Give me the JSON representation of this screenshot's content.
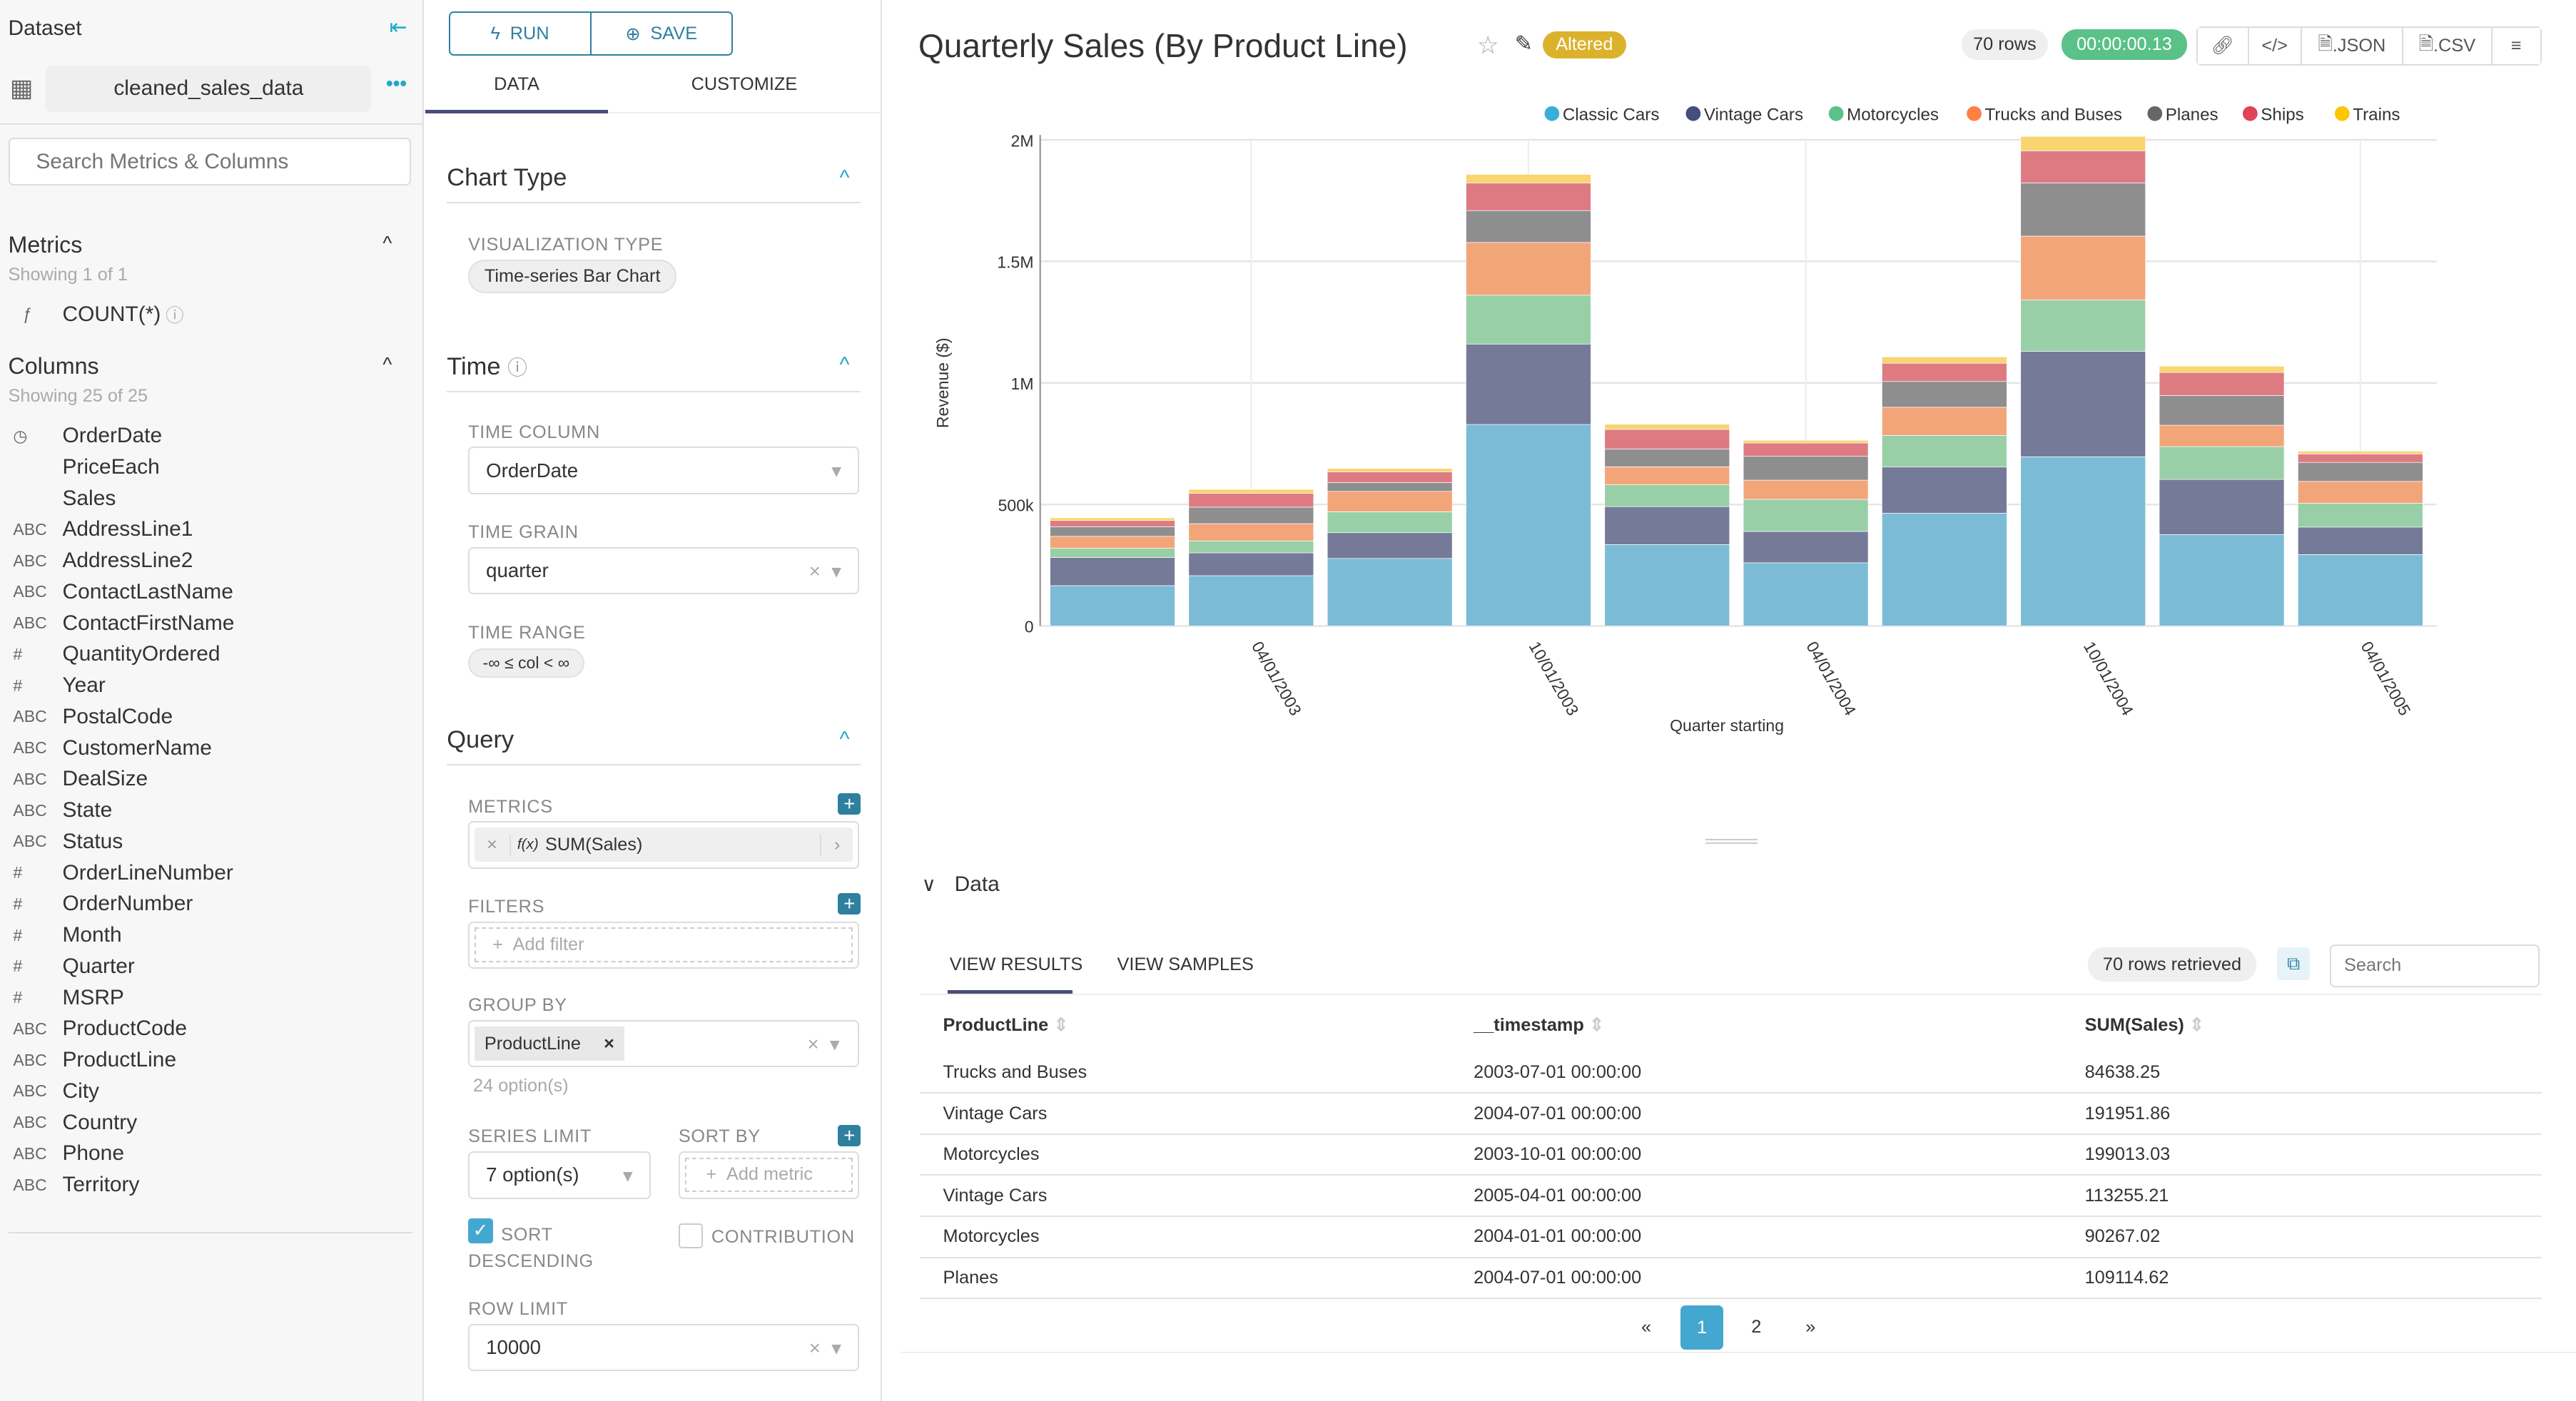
{
  "sidebar": {
    "title": "Dataset",
    "dataset_name": "cleaned_sales_data",
    "search_placeholder": "Search Metrics & Columns",
    "metrics_title": "Metrics",
    "metrics_count": "Showing 1 of 1",
    "metrics": [
      {
        "icon": "ƒ",
        "label": "COUNT(*)"
      }
    ],
    "columns_title": "Columns",
    "columns_count": "Showing 25 of 25",
    "columns": [
      {
        "type": "◷",
        "label": "OrderDate"
      },
      {
        "type": "",
        "label": "PriceEach"
      },
      {
        "type": "",
        "label": "Sales"
      },
      {
        "type": "ABC",
        "label": "AddressLine1"
      },
      {
        "type": "ABC",
        "label": "AddressLine2"
      },
      {
        "type": "ABC",
        "label": "ContactLastName"
      },
      {
        "type": "ABC",
        "label": "ContactFirstName"
      },
      {
        "type": "#",
        "label": "QuantityOrdered"
      },
      {
        "type": "#",
        "label": "Year"
      },
      {
        "type": "ABC",
        "label": "PostalCode"
      },
      {
        "type": "ABC",
        "label": "CustomerName"
      },
      {
        "type": "ABC",
        "label": "DealSize"
      },
      {
        "type": "ABC",
        "label": "State"
      },
      {
        "type": "ABC",
        "label": "Status"
      },
      {
        "type": "#",
        "label": "OrderLineNumber"
      },
      {
        "type": "#",
        "label": "OrderNumber"
      },
      {
        "type": "#",
        "label": "Month"
      },
      {
        "type": "#",
        "label": "Quarter"
      },
      {
        "type": "#",
        "label": "MSRP"
      },
      {
        "type": "ABC",
        "label": "ProductCode"
      },
      {
        "type": "ABC",
        "label": "ProductLine"
      },
      {
        "type": "ABC",
        "label": "City"
      },
      {
        "type": "ABC",
        "label": "Country"
      },
      {
        "type": "ABC",
        "label": "Phone"
      },
      {
        "type": "ABC",
        "label": "Territory"
      }
    ]
  },
  "controls": {
    "run": "RUN",
    "save": "SAVE",
    "tabs": [
      "DATA",
      "CUSTOMIZE"
    ],
    "chart_type": {
      "title": "Chart Type",
      "viz_label": "VISUALIZATION TYPE",
      "viz_value": "Time-series Bar Chart"
    },
    "time": {
      "title": "Time",
      "column_label": "TIME COLUMN",
      "column_value": "OrderDate",
      "grain_label": "TIME GRAIN",
      "grain_value": "quarter",
      "range_label": "TIME RANGE",
      "range_value": "-∞ ≤ col < ∞"
    },
    "query": {
      "title": "Query",
      "metrics_label": "METRICS",
      "metric_value": "SUM(Sales)",
      "metric_fx": "f(x)",
      "filters_label": "FILTERS",
      "add_filter": "Add filter",
      "groupby_label": "GROUP BY",
      "groupby_tag": "ProductLine",
      "groupby_hint": "24 option(s)",
      "series_limit_label": "SERIES LIMIT",
      "series_limit_value": "7 option(s)",
      "sort_by_label": "SORT BY",
      "add_metric": "Add metric",
      "sort_desc_label": "SORT DESCENDING",
      "sort_desc_checked": true,
      "contribution_label": "CONTRIBUTION",
      "contribution_checked": false,
      "row_limit_label": "ROW LIMIT",
      "row_limit_value": "10000"
    }
  },
  "header": {
    "title": "Quarterly Sales (By Product Line)",
    "altered": "Altered",
    "rows": "70 rows",
    "duration": "00:00:00.13",
    "json": ".JSON",
    "csv": ".CSV"
  },
  "chart_data": {
    "type": "bar",
    "stacked": true,
    "ylabel": "Revenue ($)",
    "xlabel": "Quarter starting",
    "ylim": [
      0,
      2000000
    ],
    "yticks": [
      "0",
      "500k",
      "1M",
      "1.5M",
      "2M"
    ],
    "ytick_values": [
      0,
      500000,
      1000000,
      1500000,
      2000000
    ],
    "xtick_labels": [
      "04/01/2003",
      "10/01/2003",
      "04/01/2004",
      "10/01/2004",
      "04/01/2005"
    ],
    "categories": [
      "2003-01-01",
      "2003-04-01",
      "2003-07-01",
      "2003-10-01",
      "2004-01-01",
      "2004-04-01",
      "2004-07-01",
      "2004-10-01",
      "2005-01-01",
      "2005-04-01"
    ],
    "legend_position": "top-right",
    "grid": true,
    "series": [
      {
        "name": "Classic Cars",
        "color": "#7bbbd6",
        "legend_color": "#3caddb",
        "values": [
          166000,
          207000,
          278000,
          829000,
          335000,
          260000,
          464000,
          696000,
          376000,
          294000
        ]
      },
      {
        "name": "Vintage Cars",
        "color": "#757a98",
        "legend_color": "#454e7c",
        "values": [
          116000,
          94000,
          106000,
          331000,
          156000,
          129000,
          190000,
          434000,
          227000,
          113000
        ]
      },
      {
        "name": "Motorcycles",
        "color": "#99cfa6",
        "legend_color": "#5ac189",
        "values": [
          38000,
          49000,
          86000,
          201000,
          90000,
          132000,
          130000,
          211000,
          135000,
          98000
        ]
      },
      {
        "name": "Trucks and Buses",
        "color": "#f3a57a",
        "legend_color": "#ff7f44",
        "values": [
          49000,
          71000,
          84000,
          217000,
          74000,
          79000,
          116000,
          263000,
          88000,
          90000
        ]
      },
      {
        "name": "Planes",
        "color": "#8e8e8e",
        "legend_color": "#666666",
        "values": [
          39000,
          68000,
          36000,
          131000,
          73000,
          98000,
          106000,
          219000,
          122000,
          78000
        ]
      },
      {
        "name": "Ships",
        "color": "#de7b82",
        "legend_color": "#e04355",
        "values": [
          26000,
          57000,
          44000,
          114000,
          81000,
          55000,
          75000,
          132000,
          95000,
          35000
        ]
      },
      {
        "name": "Trains",
        "color": "#f8d56f",
        "legend_color": "#fcc700",
        "values": [
          11000,
          16000,
          14000,
          35000,
          21000,
          11000,
          26000,
          59000,
          26000,
          11000
        ]
      }
    ]
  },
  "data_panel": {
    "title": "Data",
    "tabs": [
      "VIEW RESULTS",
      "VIEW SAMPLES"
    ],
    "rows_retrieved": "70 rows retrieved",
    "search_placeholder": "Search",
    "columns": [
      "ProductLine",
      "__timestamp",
      "SUM(Sales)"
    ],
    "rows": [
      [
        "Trucks and Buses",
        "2003-07-01 00:00:00",
        "84638.25"
      ],
      [
        "Vintage Cars",
        "2004-07-01 00:00:00",
        "191951.86"
      ],
      [
        "Motorcycles",
        "2003-10-01 00:00:00",
        "199013.03"
      ],
      [
        "Vintage Cars",
        "2005-04-01 00:00:00",
        "113255.21"
      ],
      [
        "Motorcycles",
        "2004-01-01 00:00:00",
        "90267.02"
      ],
      [
        "Planes",
        "2004-07-01 00:00:00",
        "109114.62"
      ]
    ],
    "pagination": {
      "prev": "«",
      "pages": [
        "1",
        "2"
      ],
      "current": "1",
      "next": "»"
    }
  },
  "colors": {
    "accent": "#1fa8c9",
    "primary": "#2f7f9e",
    "tab_underline": "#484f7a",
    "success": "#5ac189",
    "warning": "#dcb22d"
  }
}
